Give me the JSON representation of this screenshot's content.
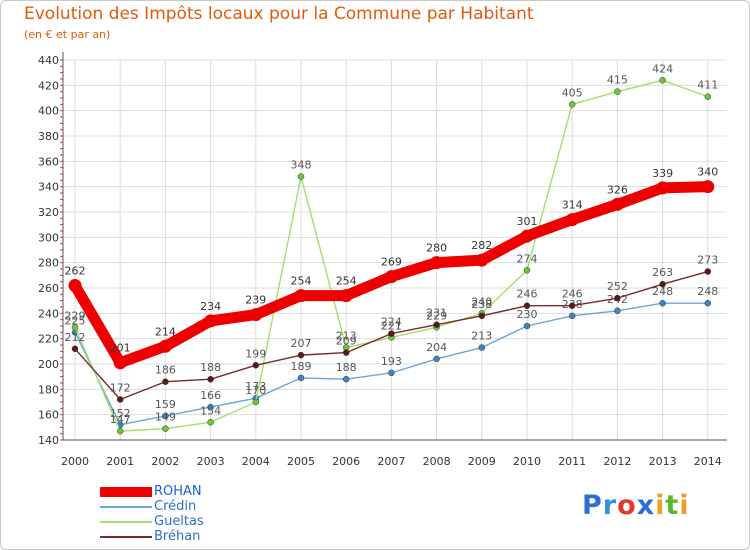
{
  "title": "Evolution des Impôts locaux pour la Commune par Habitant",
  "subtitle": "(en € et par an)",
  "logo": {
    "letters": [
      {
        "ch": "P",
        "color": "#2a6fd6"
      },
      {
        "ch": "r",
        "color": "#3a8fe0"
      },
      {
        "ch": "o",
        "color": "#e03a2a"
      },
      {
        "ch": "x",
        "color": "#2a6fd6"
      },
      {
        "ch": "i",
        "color": "#f0a020"
      },
      {
        "ch": "t",
        "color": "#5cb82a"
      },
      {
        "ch": "i",
        "color": "#f0a020"
      }
    ]
  },
  "chart_data": {
    "type": "line",
    "title": "Evolution des Impôts locaux pour la Commune par Habitant",
    "subtitle": "(en € et par an)",
    "xlabel": "",
    "ylabel": "",
    "ylim": [
      140,
      440
    ],
    "y_ticks": [
      140,
      160,
      180,
      200,
      220,
      240,
      260,
      280,
      300,
      320,
      340,
      360,
      380,
      400,
      420,
      440
    ],
    "x": [
      "2000",
      "2001",
      "2002",
      "2003",
      "2004",
      "2005",
      "2006",
      "2007",
      "2008",
      "2009",
      "2010",
      "2011",
      "2012",
      "2013",
      "2014"
    ],
    "grid": true,
    "legend_position": "bottom-left",
    "series": [
      {
        "name": "ROHAN",
        "color": "#ee0000",
        "marker": "#ee0000",
        "width": 11,
        "label_color": "#333333",
        "values": [
          262,
          201,
          214,
          234,
          239,
          254,
          254,
          269,
          280,
          282,
          301,
          314,
          326,
          339,
          340
        ]
      },
      {
        "name": "Crédin",
        "color": "#6fa5d6",
        "marker": "#3c86c6",
        "width": 1.4,
        "label_color": "#555555",
        "values": [
          225,
          152,
          159,
          166,
          173,
          189,
          188,
          193,
          204,
          213,
          230,
          238,
          242,
          248,
          248
        ]
      },
      {
        "name": "Gueltas",
        "color": "#a2de70",
        "marker": "#6cc53a",
        "width": 1.4,
        "label_color": "#555555",
        "values": [
          229,
          147,
          149,
          154,
          170,
          348,
          213,
          221,
          229,
          240,
          274,
          405,
          415,
          424,
          411
        ]
      },
      {
        "name": "Bréhan",
        "color": "#7a2a2a",
        "marker": "#5a1a1a",
        "width": 1.4,
        "label_color": "#555555",
        "values": [
          212,
          172,
          186,
          188,
          199,
          207,
          209,
          224,
          231,
          238,
          246,
          246,
          252,
          263,
          273
        ]
      }
    ],
    "legend_label_colors": [
      "#1b5fd9",
      "#2b6fc8",
      "#2b6fc8",
      "#2b6fc8"
    ]
  }
}
